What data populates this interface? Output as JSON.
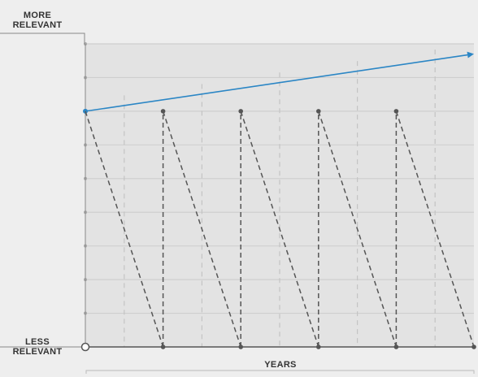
{
  "chart_data": {
    "type": "line",
    "title": "",
    "xlabel": "YEARS",
    "ylabel_top": [
      "MORE",
      "RELEVANT"
    ],
    "ylabel_bottom": [
      "LESS",
      "RELEVANT"
    ],
    "xlim": [
      0,
      10
    ],
    "ylim": [
      0,
      9
    ],
    "grid": true,
    "legend": "none",
    "colors": {
      "trend": "#2b86c5",
      "cycles": "#555555",
      "background": "#eeeeee",
      "plot_area": "#e3e3e3",
      "grid": "#cfcfcf"
    },
    "series": [
      {
        "style": "solid-arrow",
        "points": [
          [
            0,
            7
          ],
          [
            10,
            8.7
          ]
        ]
      },
      {
        "style": "dashed-sawtooth",
        "points": [
          [
            0,
            7
          ],
          [
            2,
            0
          ],
          [
            2,
            7
          ],
          [
            4,
            0
          ],
          [
            4,
            7
          ],
          [
            6,
            0
          ],
          [
            6,
            7
          ],
          [
            8,
            0
          ],
          [
            8,
            7
          ],
          [
            10,
            0
          ]
        ]
      }
    ]
  }
}
